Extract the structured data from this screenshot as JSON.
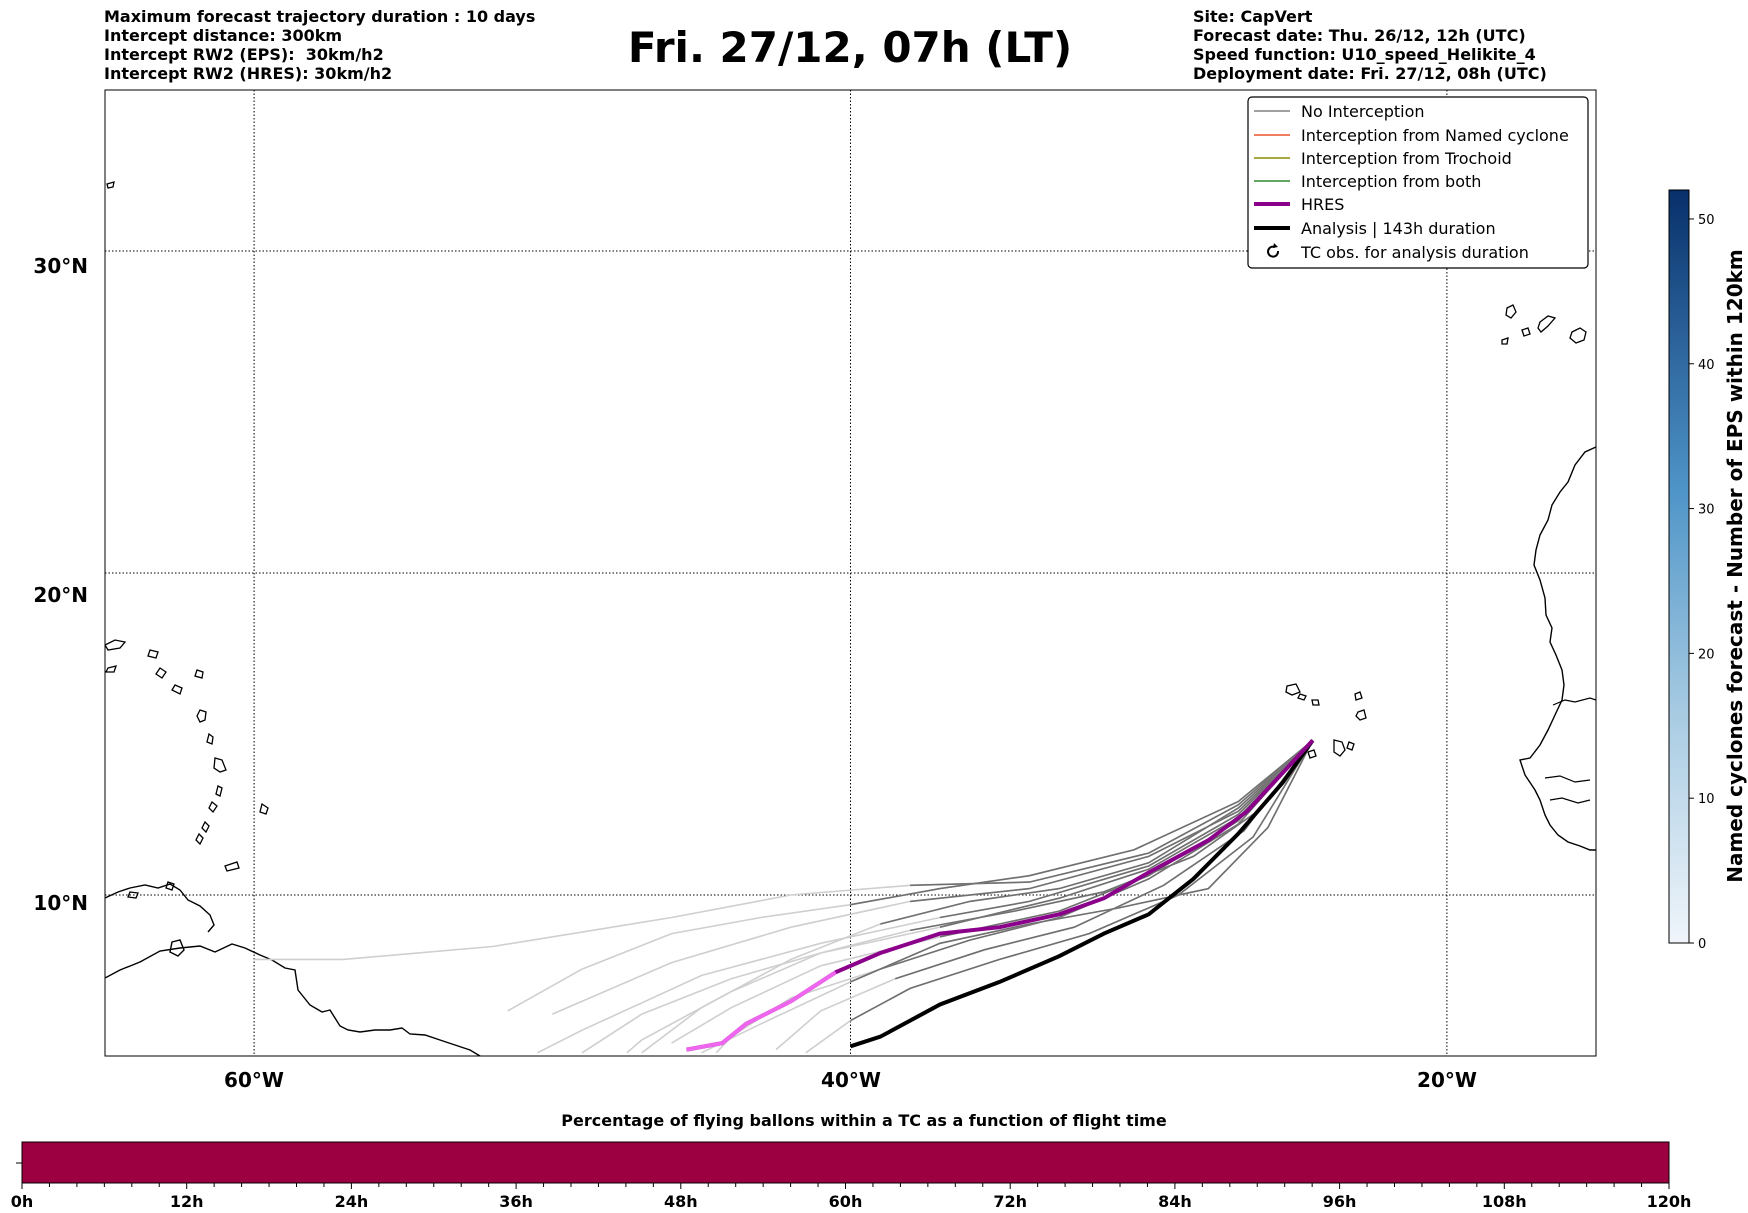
{
  "header_left": [
    "Maximum forecast trajectory duration : 10 days",
    "Intercept distance: 300km",
    "Intercept RW2 (EPS):  30km/h2",
    "Intercept RW2 (HRES): 30km/h2"
  ],
  "title": "Fri. 27/12, 07h (LT)",
  "header_right": [
    "Site: CapVert",
    "Forecast date: Thu. 26/12, 12h (UTC)",
    "Speed function: U10_speed_Helikite_4",
    "Deployment date: Fri. 27/12, 08h (UTC)"
  ],
  "map": {
    "lon_range": [
      -65,
      -15
    ],
    "lat_range": [
      5,
      35
    ],
    "lat_labels": [
      "30°N",
      "20°N",
      "10°N"
    ],
    "lon_labels": [
      "60°W",
      "40°W",
      "20°W"
    ],
    "lat_values": [
      30,
      20,
      10
    ],
    "lon_values": [
      -60,
      -40,
      -20
    ],
    "gridlines": "dotted"
  },
  "legend": {
    "placement": "top-right",
    "items": [
      {
        "label": "No Interception",
        "color": "#808080",
        "style": "thin-line"
      },
      {
        "label": "Interception from Named cyclone",
        "color": "#e8552a",
        "style": "thin-line"
      },
      {
        "label": "Interception from Trochoid",
        "color": "#8b8b00",
        "style": "thin-line"
      },
      {
        "label": "Interception from both",
        "color": "#2e8b2e",
        "style": "thin-line"
      },
      {
        "label": "HRES",
        "color": "#8b008b",
        "style": "thick-line"
      },
      {
        "label": "Analysis | 143h duration",
        "color": "#000000",
        "style": "thick-line"
      },
      {
        "label": "TC obs. for analysis duration",
        "color": "#000000",
        "style": "cyclone-icon"
      }
    ]
  },
  "colorbar": {
    "label": "Named cyclones forecast - Number of EPS within 120km",
    "ticks": [
      "0",
      "10",
      "20",
      "30",
      "40",
      "50"
    ],
    "range": [
      0,
      52
    ],
    "colors": [
      "#f0f5fb",
      "#08306b"
    ]
  },
  "bottom_bar": {
    "title": "Percentage of flying ballons within a TC as a function of flight time",
    "ticks": [
      "0h",
      "12h",
      "24h",
      "36h",
      "48h",
      "60h",
      "72h",
      "84h",
      "96h",
      "108h",
      "120h"
    ],
    "fill_color": "#9c0040"
  },
  "chart_data": {
    "type": "line",
    "site_point": {
      "lon": -24.5,
      "lat": 14.8
    },
    "hres": [
      [
        -24.5,
        14.8
      ],
      [
        -25.5,
        13.8
      ],
      [
        -26.7,
        12.6
      ],
      [
        -28.0,
        11.7
      ],
      [
        -30.0,
        10.7
      ],
      [
        -31.5,
        9.9
      ],
      [
        -33.0,
        9.4
      ],
      [
        -35.0,
        9.0
      ],
      [
        -37.0,
        8.8
      ],
      [
        -39.0,
        8.2
      ],
      [
        -40.5,
        7.6
      ],
      [
        -42.0,
        6.7
      ],
      [
        -43.5,
        6.0
      ],
      [
        -44.3,
        5.4
      ],
      [
        -45.5,
        5.2
      ]
    ],
    "analysis": [
      [
        -24.5,
        14.8
      ],
      [
        -25.5,
        13.5
      ],
      [
        -27.0,
        11.9
      ],
      [
        -28.5,
        10.5
      ],
      [
        -30.0,
        9.4
      ],
      [
        -31.5,
        8.8
      ],
      [
        -33.0,
        8.1
      ],
      [
        -35.0,
        7.3
      ],
      [
        -37.0,
        6.6
      ],
      [
        -39.0,
        5.6
      ],
      [
        -40.0,
        5.3
      ]
    ],
    "ensemble": [
      [
        [
          -24.5,
          14.8
        ],
        [
          -27,
          12.6
        ],
        [
          -30,
          11.2
        ],
        [
          -34,
          10.2
        ],
        [
          -38,
          9.8
        ],
        [
          -42,
          9.0
        ],
        [
          -46,
          7.9
        ],
        [
          -50,
          6.3
        ]
      ],
      [
        [
          -24.5,
          14.8
        ],
        [
          -27,
          12.8
        ],
        [
          -30,
          11.3
        ],
        [
          -34,
          10.4
        ],
        [
          -38,
          10.3
        ],
        [
          -42,
          10.0
        ],
        [
          -46,
          9.3
        ],
        [
          -52,
          8.4
        ],
        [
          -57,
          8.0
        ],
        [
          -60,
          8.0
        ]
      ],
      [
        [
          -24.5,
          14.8
        ],
        [
          -27,
          12.5
        ],
        [
          -30,
          10.9
        ],
        [
          -34,
          9.8
        ],
        [
          -37,
          9.3
        ],
        [
          -41,
          8.5
        ],
        [
          -45,
          7.5
        ],
        [
          -49,
          5.8
        ],
        [
          -50.5,
          5.1
        ]
      ],
      [
        [
          -24.5,
          14.8
        ],
        [
          -27,
          12.4
        ],
        [
          -30,
          10.8
        ],
        [
          -33,
          9.9
        ],
        [
          -37,
          9.0
        ],
        [
          -41,
          8.2
        ],
        [
          -44,
          7.0
        ],
        [
          -47,
          5.5
        ],
        [
          -47.5,
          5.1
        ]
      ],
      [
        [
          -24.5,
          14.8
        ],
        [
          -27,
          12.3
        ],
        [
          -30,
          10.6
        ],
        [
          -33,
          9.5
        ],
        [
          -37,
          8.7
        ],
        [
          -41,
          7.8
        ],
        [
          -44,
          6.5
        ],
        [
          -46,
          5.4
        ]
      ],
      [
        [
          -24.5,
          14.8
        ],
        [
          -27,
          12.2
        ],
        [
          -30,
          10.5
        ],
        [
          -33,
          9.3
        ],
        [
          -36,
          8.6
        ],
        [
          -39,
          7.7
        ],
        [
          -42,
          6.8
        ],
        [
          -44,
          5.6
        ],
        [
          -44.5,
          5.1
        ]
      ],
      [
        [
          -24.5,
          14.8
        ],
        [
          -26.8,
          12.0
        ],
        [
          -29.5,
          10.3
        ],
        [
          -32.5,
          9.0
        ],
        [
          -35.5,
          8.3
        ],
        [
          -38.5,
          7.4
        ],
        [
          -41,
          6.4
        ],
        [
          -42.5,
          5.2
        ]
      ],
      [
        [
          -24.5,
          14.8
        ],
        [
          -26.5,
          11.8
        ],
        [
          -29,
          10.0
        ],
        [
          -32,
          8.8
        ],
        [
          -35,
          8.0
        ],
        [
          -38,
          7.1
        ],
        [
          -40,
          6.1
        ],
        [
          -41.5,
          5.1
        ]
      ],
      [
        [
          -24.5,
          14.8
        ],
        [
          -27,
          12.9
        ],
        [
          -30.5,
          11.4
        ],
        [
          -34,
          10.6
        ],
        [
          -37,
          10.2
        ],
        [
          -40,
          9.7
        ],
        [
          -43,
          9.3
        ],
        [
          -46,
          8.8
        ],
        [
          -49,
          7.7
        ],
        [
          -51.5,
          6.4
        ]
      ],
      [
        [
          -24.5,
          14.8
        ],
        [
          -27,
          12.7
        ],
        [
          -30,
          11.0
        ],
        [
          -33,
          10.2
        ],
        [
          -36,
          9.8
        ],
        [
          -39,
          9.1
        ],
        [
          -42,
          8.0
        ],
        [
          -45,
          6.5
        ],
        [
          -47,
          5.1
        ]
      ],
      [
        [
          -24.5,
          14.8
        ],
        [
          -26,
          12.1
        ],
        [
          -28,
          10.2
        ],
        [
          -31,
          9.6
        ],
        [
          -34,
          9.1
        ],
        [
          -37,
          8.5
        ],
        [
          -40,
          7.3
        ],
        [
          -43,
          6.0
        ],
        [
          -45,
          5.1
        ]
      ],
      [
        [
          -24.5,
          14.8
        ],
        [
          -26.2,
          12.7
        ],
        [
          -28.5,
          11.2
        ],
        [
          -31.5,
          10.1
        ],
        [
          -34.5,
          9.5
        ],
        [
          -38,
          8.9
        ],
        [
          -41,
          8.2
        ],
        [
          -44,
          7.4
        ],
        [
          -47,
          6.3
        ],
        [
          -49,
          5.1
        ]
      ]
    ]
  }
}
